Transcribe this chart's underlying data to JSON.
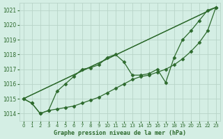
{
  "title": "Graphe pression niveau de la mer (hPa)",
  "bg_color": "#d4eee4",
  "grid_color": "#b8d4c8",
  "line_color": "#2d6a2d",
  "series": [
    {
      "x": [
        0,
        1,
        2,
        3,
        4,
        5,
        6,
        7,
        8,
        9,
        10,
        11,
        12,
        13,
        14,
        15,
        16,
        17,
        18,
        19,
        20,
        21,
        22,
        23
      ],
      "y": [
        1015.0,
        1014.7,
        1014.0,
        1014.2,
        1015.5,
        1016.0,
        1016.5,
        1017.0,
        1017.1,
        1017.3,
        1017.8,
        1018.0,
        1017.5,
        1016.6,
        1016.6,
        1016.7,
        1017.0,
        1016.1,
        1017.8,
        1019.0,
        1019.6,
        1020.3,
        1021.0,
        1021.2
      ]
    },
    {
      "x": [
        0,
        23
      ],
      "y": [
        1015.0,
        1021.2
      ]
    },
    {
      "x": [
        0,
        23
      ],
      "y": [
        1015.0,
        1021.2
      ]
    },
    {
      "x": [
        0,
        1,
        2,
        3,
        4,
        5,
        6,
        7,
        8,
        9,
        10,
        11,
        12,
        13,
        14,
        15,
        16,
        17,
        18,
        19,
        20,
        21,
        22,
        23
      ],
      "y": [
        1015.0,
        1014.7,
        1014.0,
        1014.2,
        1014.3,
        1014.4,
        1014.5,
        1014.7,
        1014.9,
        1015.1,
        1015.4,
        1015.7,
        1016.0,
        1016.3,
        1016.5,
        1016.6,
        1016.8,
        1017.0,
        1017.3,
        1017.7,
        1018.2,
        1018.8,
        1019.6,
        1021.2
      ]
    }
  ],
  "markers": [
    true,
    false,
    false,
    true
  ],
  "xlim": [
    -0.5,
    23.5
  ],
  "ylim": [
    1013.5,
    1021.5
  ],
  "yticks": [
    1014,
    1015,
    1016,
    1017,
    1018,
    1019,
    1020,
    1021
  ],
  "xticks": [
    0,
    1,
    2,
    3,
    4,
    5,
    6,
    7,
    8,
    9,
    10,
    11,
    12,
    13,
    14,
    15,
    16,
    17,
    18,
    19,
    20,
    21,
    22,
    23
  ]
}
